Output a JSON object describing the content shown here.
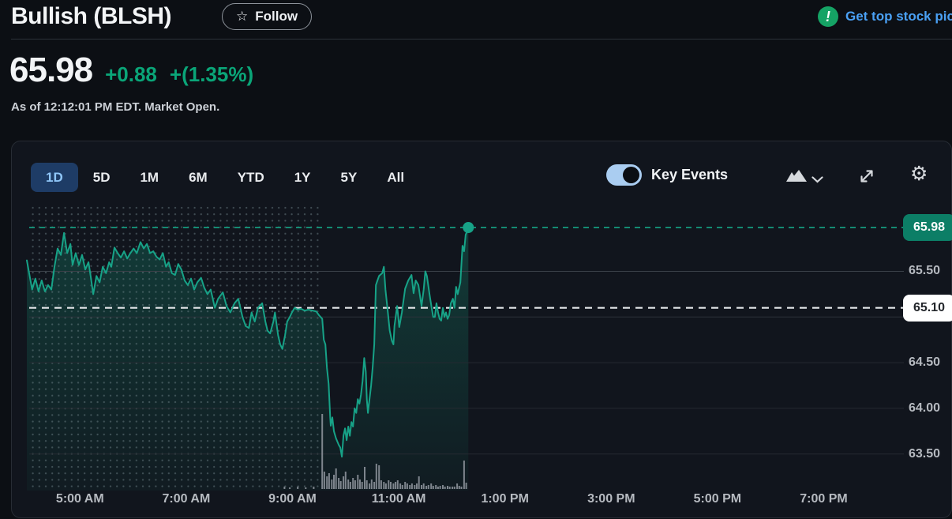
{
  "header": {
    "title": "Bullish (BLSH)",
    "follow_label": "Follow",
    "follow_icon": "star-outline-icon",
    "promo_icon": "exclamation-circle-icon",
    "promo_exclamation": "!",
    "promo_text": "Get top stock pic"
  },
  "quote": {
    "price": "65.98",
    "change": "+0.88",
    "change_pct": "+(1.35%)",
    "as_of": "As of 12:12:01 PM EDT. Market Open."
  },
  "toolbar": {
    "ranges": [
      "1D",
      "5D",
      "1M",
      "6M",
      "YTD",
      "1Y",
      "5Y",
      "All"
    ],
    "active_range": "1D",
    "key_events_label": "Key Events",
    "key_events_on": true,
    "icons": [
      "chart-type-mountain-icon",
      "chevron-down-icon",
      "expand-icon",
      "gear-icon"
    ]
  },
  "colors": {
    "page_bg": "#0c0f14",
    "card_bg": "#11151d",
    "accent_green": "#17a287",
    "change_green": "#0aa578",
    "badge_green": "#0c7e66",
    "link_blue": "#4aa0f4",
    "active_tab_bg": "#1e3c66",
    "active_tab_text": "#8fc6f8",
    "toggle_blue": "#aacdf1",
    "prev_close_badge": "#ffffff",
    "volume_gray": "#9298a0"
  },
  "chart_data": {
    "type": "line",
    "x_unit": "time_of_day_decimal_hours_EDT",
    "y_unit": "price_usd",
    "xlim": [
      4.0,
      20.2
    ],
    "ylim": [
      63.3,
      66.05
    ],
    "grid": true,
    "session_start_t": 4.0,
    "market_open_t": 9.5,
    "current_price": {
      "t": 12.31,
      "price": 65.98,
      "label": "65.98"
    },
    "previous_close": {
      "price": 65.1,
      "label": "65.10"
    },
    "x_ticks": [
      {
        "t": 5,
        "label": "5:00 AM"
      },
      {
        "t": 7,
        "label": "7:00 AM"
      },
      {
        "t": 9,
        "label": "9:00 AM"
      },
      {
        "t": 11,
        "label": "11:00 AM"
      },
      {
        "t": 13,
        "label": "1:00 PM"
      },
      {
        "t": 15,
        "label": "3:00 PM"
      },
      {
        "t": 17,
        "label": "5:00 PM"
      },
      {
        "t": 19,
        "label": "7:00 PM"
      }
    ],
    "y_gridlines": [
      65.5,
      65.0,
      64.5,
      64.0,
      63.5
    ],
    "y_ticks": [
      {
        "price": 65.5,
        "label": "65.50"
      },
      {
        "price": 64.5,
        "label": "64.50"
      },
      {
        "price": 64.0,
        "label": "64.00"
      },
      {
        "price": 63.5,
        "label": "63.50"
      }
    ],
    "series": [
      {
        "name": "BLSH price",
        "points": [
          [
            4.0,
            65.62
          ],
          [
            4.1,
            65.3
          ],
          [
            4.16,
            65.42
          ],
          [
            4.22,
            65.28
          ],
          [
            4.28,
            65.4
          ],
          [
            4.34,
            65.28
          ],
          [
            4.4,
            65.35
          ],
          [
            4.46,
            65.3
          ],
          [
            4.52,
            65.55
          ],
          [
            4.58,
            65.75
          ],
          [
            4.64,
            65.68
          ],
          [
            4.7,
            65.92
          ],
          [
            4.76,
            65.7
          ],
          [
            4.82,
            65.8
          ],
          [
            4.86,
            65.57
          ],
          [
            4.92,
            65.7
          ],
          [
            4.98,
            65.57
          ],
          [
            5.04,
            65.68
          ],
          [
            5.1,
            65.52
          ],
          [
            5.16,
            65.6
          ],
          [
            5.2,
            65.45
          ],
          [
            5.25,
            65.25
          ],
          [
            5.31,
            65.45
          ],
          [
            5.37,
            65.38
          ],
          [
            5.43,
            65.55
          ],
          [
            5.49,
            65.48
          ],
          [
            5.55,
            65.6
          ],
          [
            5.59,
            65.55
          ],
          [
            5.65,
            65.76
          ],
          [
            5.71,
            65.7
          ],
          [
            5.77,
            65.65
          ],
          [
            5.83,
            65.72
          ],
          [
            5.89,
            65.64
          ],
          [
            5.95,
            65.7
          ],
          [
            6.01,
            65.75
          ],
          [
            6.07,
            65.7
          ],
          [
            6.14,
            65.82
          ],
          [
            6.2,
            65.75
          ],
          [
            6.26,
            65.8
          ],
          [
            6.32,
            65.7
          ],
          [
            6.38,
            65.72
          ],
          [
            6.44,
            65.66
          ],
          [
            6.5,
            65.63
          ],
          [
            6.56,
            65.7
          ],
          [
            6.62,
            65.55
          ],
          [
            6.67,
            65.6
          ],
          [
            6.73,
            65.48
          ],
          [
            6.79,
            65.46
          ],
          [
            6.85,
            65.58
          ],
          [
            6.91,
            65.52
          ],
          [
            6.97,
            65.4
          ],
          [
            7.03,
            65.35
          ],
          [
            7.09,
            65.42
          ],
          [
            7.15,
            65.3
          ],
          [
            7.21,
            65.38
          ],
          [
            7.28,
            65.43
          ],
          [
            7.34,
            65.32
          ],
          [
            7.4,
            65.25
          ],
          [
            7.46,
            65.3
          ],
          [
            7.54,
            65.1
          ],
          [
            7.6,
            65.2
          ],
          [
            7.69,
            65.27
          ],
          [
            7.76,
            65.12
          ],
          [
            7.83,
            65.05
          ],
          [
            7.91,
            65.15
          ],
          [
            7.98,
            65.2
          ],
          [
            8.06,
            65.0
          ],
          [
            8.12,
            64.9
          ],
          [
            8.18,
            64.88
          ],
          [
            8.23,
            65.05
          ],
          [
            8.29,
            64.95
          ],
          [
            8.35,
            65.1
          ],
          [
            8.43,
            65.15
          ],
          [
            8.49,
            64.95
          ],
          [
            8.53,
            64.85
          ],
          [
            8.58,
            64.82
          ],
          [
            8.64,
            64.95
          ],
          [
            8.67,
            65.05
          ],
          [
            8.73,
            64.8
          ],
          [
            8.77,
            64.7
          ],
          [
            8.81,
            64.65
          ],
          [
            8.86,
            64.8
          ],
          [
            8.9,
            64.95
          ],
          [
            8.95,
            65.0
          ],
          [
            8.99,
            65.05
          ],
          [
            9.04,
            65.1
          ],
          [
            9.1,
            65.08
          ],
          [
            9.16,
            65.09
          ],
          [
            9.23,
            65.07
          ],
          [
            9.3,
            65.08
          ],
          [
            9.38,
            65.07
          ],
          [
            9.45,
            65.06
          ],
          [
            9.5,
            65.02
          ],
          [
            9.56,
            64.98
          ],
          [
            9.59,
            64.75
          ],
          [
            9.62,
            64.7
          ],
          [
            9.65,
            64.44
          ],
          [
            9.68,
            64.27
          ],
          [
            9.71,
            63.9
          ],
          [
            9.72,
            63.81
          ],
          [
            9.75,
            63.9
          ],
          [
            9.78,
            63.75
          ],
          [
            9.82,
            63.67
          ],
          [
            9.87,
            63.6
          ],
          [
            9.9,
            63.57
          ],
          [
            9.93,
            63.47
          ],
          [
            9.96,
            63.7
          ],
          [
            9.99,
            63.78
          ],
          [
            10.02,
            63.65
          ],
          [
            10.05,
            63.8
          ],
          [
            10.08,
            63.7
          ],
          [
            10.11,
            63.85
          ],
          [
            10.14,
            63.8
          ],
          [
            10.17,
            64.0
          ],
          [
            10.2,
            63.95
          ],
          [
            10.23,
            64.1
          ],
          [
            10.26,
            64.05
          ],
          [
            10.29,
            64.15
          ],
          [
            10.32,
            64.3
          ],
          [
            10.35,
            64.55
          ],
          [
            10.38,
            64.4
          ],
          [
            10.4,
            64.1
          ],
          [
            10.42,
            63.95
          ],
          [
            10.45,
            64.1
          ],
          [
            10.48,
            64.25
          ],
          [
            10.51,
            64.45
          ],
          [
            10.54,
            64.7
          ],
          [
            10.57,
            65.35
          ],
          [
            10.6,
            65.4
          ],
          [
            10.63,
            65.45
          ],
          [
            10.69,
            65.48
          ],
          [
            10.72,
            65.55
          ],
          [
            10.75,
            65.3
          ],
          [
            10.79,
            65.08
          ],
          [
            10.83,
            64.85
          ],
          [
            10.87,
            64.74
          ],
          [
            10.9,
            64.7
          ],
          [
            10.92,
            64.9
          ],
          [
            10.97,
            65.12
          ],
          [
            11.01,
            64.89
          ],
          [
            11.06,
            65.05
          ],
          [
            11.12,
            65.31
          ],
          [
            11.18,
            65.4
          ],
          [
            11.24,
            65.46
          ],
          [
            11.28,
            65.26
          ],
          [
            11.32,
            65.4
          ],
          [
            11.37,
            65.35
          ],
          [
            11.43,
            65.12
          ],
          [
            11.47,
            65.3
          ],
          [
            11.5,
            65.5
          ],
          [
            11.53,
            65.45
          ],
          [
            11.58,
            65.25
          ],
          [
            11.62,
            65.1
          ],
          [
            11.65,
            65.0
          ],
          [
            11.68,
            65.0
          ],
          [
            11.71,
            65.15
          ],
          [
            11.74,
            65.05
          ],
          [
            11.77,
            64.98
          ],
          [
            11.8,
            64.96
          ],
          [
            11.83,
            65.1
          ],
          [
            11.86,
            65.0
          ],
          [
            11.89,
            65.05
          ],
          [
            11.92,
            64.98
          ],
          [
            11.95,
            65.02
          ],
          [
            11.98,
            65.15
          ],
          [
            12.02,
            65.2
          ],
          [
            12.05,
            65.1
          ],
          [
            12.08,
            65.33
          ],
          [
            12.11,
            65.25
          ],
          [
            12.16,
            65.38
          ],
          [
            12.2,
            65.78
          ],
          [
            12.23,
            65.72
          ],
          [
            12.26,
            65.9
          ],
          [
            12.31,
            65.97
          ]
        ]
      }
    ],
    "volume_bars": [
      [
        8.85,
        3
      ],
      [
        8.95,
        2
      ],
      [
        9.1,
        3
      ],
      [
        9.25,
        2
      ],
      [
        9.4,
        3
      ],
      [
        9.56,
        95
      ],
      [
        9.6,
        22
      ],
      [
        9.65,
        16
      ],
      [
        9.69,
        20
      ],
      [
        9.74,
        12
      ],
      [
        9.78,
        18
      ],
      [
        9.82,
        26
      ],
      [
        9.87,
        14
      ],
      [
        9.91,
        10
      ],
      [
        9.96,
        16
      ],
      [
        10.0,
        22
      ],
      [
        10.05,
        12
      ],
      [
        10.09,
        9
      ],
      [
        10.14,
        14
      ],
      [
        10.18,
        11
      ],
      [
        10.23,
        18
      ],
      [
        10.27,
        12
      ],
      [
        10.31,
        9
      ],
      [
        10.36,
        28
      ],
      [
        10.4,
        11
      ],
      [
        10.45,
        7
      ],
      [
        10.49,
        12
      ],
      [
        10.54,
        9
      ],
      [
        10.58,
        32
      ],
      [
        10.63,
        30
      ],
      [
        10.67,
        11
      ],
      [
        10.72,
        9
      ],
      [
        10.76,
        7
      ],
      [
        10.81,
        11
      ],
      [
        10.85,
        9
      ],
      [
        10.9,
        7
      ],
      [
        10.94,
        9
      ],
      [
        10.98,
        11
      ],
      [
        11.03,
        7
      ],
      [
        11.07,
        5
      ],
      [
        11.12,
        9
      ],
      [
        11.16,
        7
      ],
      [
        11.21,
        5
      ],
      [
        11.25,
        7
      ],
      [
        11.3,
        5
      ],
      [
        11.34,
        7
      ],
      [
        11.38,
        16
      ],
      [
        11.43,
        5
      ],
      [
        11.47,
        7
      ],
      [
        11.52,
        4
      ],
      [
        11.56,
        5
      ],
      [
        11.61,
        7
      ],
      [
        11.65,
        4
      ],
      [
        11.7,
        5
      ],
      [
        11.74,
        3
      ],
      [
        11.78,
        4
      ],
      [
        11.83,
        5
      ],
      [
        11.87,
        3
      ],
      [
        11.92,
        4
      ],
      [
        11.96,
        3
      ],
      [
        12.01,
        3
      ],
      [
        12.05,
        3
      ],
      [
        12.1,
        7
      ],
      [
        12.14,
        4
      ],
      [
        12.18,
        3
      ],
      [
        12.23,
        36
      ],
      [
        12.27,
        8
      ]
    ]
  }
}
